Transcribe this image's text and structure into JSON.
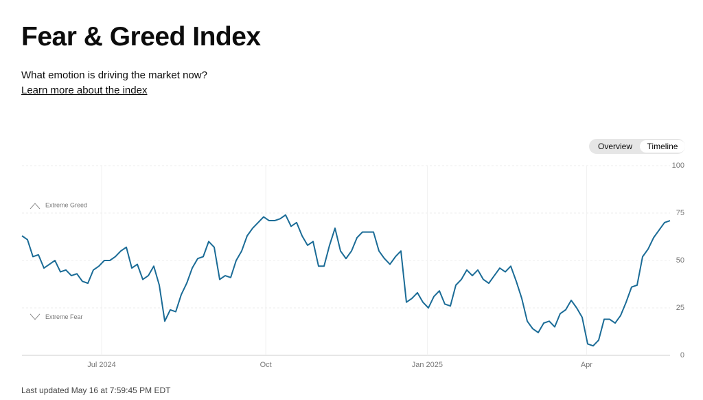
{
  "header": {
    "title": "Fear & Greed Index",
    "subtitle": "What emotion is driving the market now?",
    "link": "Learn more about the index"
  },
  "toggle": {
    "options": [
      "Overview",
      "Timeline"
    ],
    "selected": 1
  },
  "footer": "Last updated May 16 at 7:59:45 PM EDT",
  "chart_data": {
    "type": "line",
    "series": [
      {
        "color": "#1a6b96",
        "values": [
          63,
          61,
          52,
          53,
          46,
          48,
          50,
          44,
          45,
          42,
          43,
          39,
          38,
          45,
          47,
          50,
          50,
          52,
          55,
          57,
          46,
          48,
          40,
          42,
          47,
          37,
          18,
          24,
          23,
          32,
          38,
          46,
          51,
          52,
          60,
          57,
          40,
          42,
          41,
          50,
          55,
          63,
          67,
          70,
          73,
          71,
          71,
          72,
          74,
          68,
          70,
          63,
          58,
          60,
          47,
          47,
          58,
          67,
          55,
          51,
          55,
          62,
          65,
          65,
          65,
          55,
          51,
          48,
          52,
          55,
          28,
          30,
          33,
          28,
          25,
          31,
          34,
          27,
          26,
          37,
          40,
          45,
          42,
          45,
          40,
          38,
          42,
          46,
          44,
          47,
          39,
          30,
          18,
          14,
          12,
          17,
          18,
          15,
          22,
          24,
          29,
          25,
          20,
          6,
          5,
          8,
          19,
          19,
          17,
          21,
          28,
          36,
          37,
          52,
          56,
          62,
          66,
          70,
          71
        ]
      }
    ],
    "xlim": [
      0,
      118
    ],
    "xticks": [
      {
        "value": 14.5,
        "label": "Jul 2024"
      },
      {
        "value": 44.4,
        "label": "Oct"
      },
      {
        "value": 73.8,
        "label": "Jan 2025"
      },
      {
        "value": 102.8,
        "label": "Apr"
      }
    ],
    "ylim": [
      0,
      100
    ],
    "yticks": [
      0,
      25,
      50,
      75,
      100
    ],
    "grid": true,
    "annotations": [
      {
        "text": "Extreme Greed",
        "y": 79,
        "direction": "up"
      },
      {
        "text": "Extreme Fear",
        "y": 20,
        "direction": "down"
      }
    ]
  }
}
